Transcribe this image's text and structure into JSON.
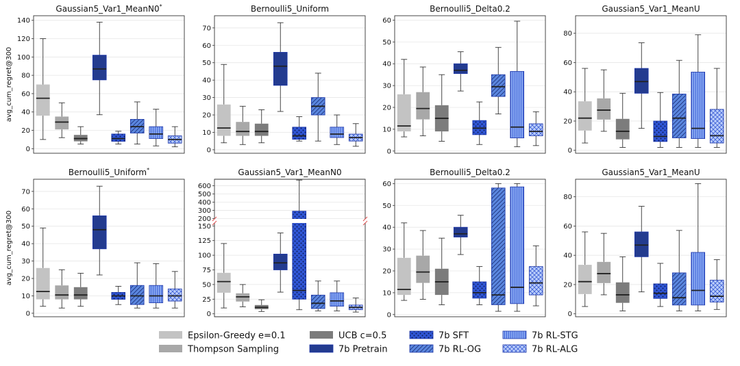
{
  "legend": {
    "items": [
      {
        "label": "Epsilon-Greedy e=0.1",
        "color": "#c3c3c3",
        "pattern": "none"
      },
      {
        "label": "Thompson Sampling",
        "color": "#a8a8a8",
        "pattern": "none"
      },
      {
        "label": "UCB c=0.5",
        "color": "#7c7c7c",
        "pattern": "none"
      },
      {
        "label": "7b Pretrain",
        "color": "#233b8f",
        "pattern": "none"
      },
      {
        "label": "7b SFT",
        "color": "#2f55d4",
        "pattern": "dots"
      },
      {
        "label": "7b RL-OG",
        "color": "#5a86de",
        "pattern": "diag"
      },
      {
        "label": "7b RL-STG",
        "color": "#8aaaf2",
        "pattern": "vert"
      },
      {
        "label": "7b RL-ALG",
        "color": "#b8ccfa",
        "pattern": "cross"
      }
    ]
  },
  "chart_data": [
    {
      "type": "box",
      "title": "Gaussian5_Var1_MeanN0",
      "title_sup": "*",
      "ylabel": "avg_cum_regret@300",
      "ylim": [
        -5,
        145
      ],
      "yticks": [
        0,
        20,
        40,
        60,
        80,
        100,
        120,
        140
      ],
      "boxes": [
        [
          10,
          36,
          55,
          70,
          120
        ],
        [
          12,
          21,
          29,
          35,
          50
        ],
        [
          5,
          8,
          11,
          15,
          24
        ],
        [
          37,
          75,
          87,
          102,
          138
        ],
        [
          5,
          8,
          11,
          16,
          19
        ],
        [
          5,
          17,
          24,
          32,
          51
        ],
        [
          3,
          11,
          16,
          24,
          43
        ],
        [
          2,
          6,
          10,
          14,
          24
        ]
      ]
    },
    {
      "type": "box",
      "title": "Bernoulli5_Uniform",
      "title_sup": "",
      "ylabel": "",
      "ylim": [
        -2,
        77
      ],
      "yticks": [
        0,
        10,
        20,
        30,
        40,
        50,
        60,
        70
      ],
      "boxes": [
        [
          4,
          8,
          12.5,
          26,
          49
        ],
        [
          3,
          8,
          10.5,
          16,
          25
        ],
        [
          4,
          8,
          10.5,
          15,
          23
        ],
        [
          22,
          37,
          48,
          56,
          73
        ],
        [
          5,
          6,
          8,
          13,
          19
        ],
        [
          5,
          20,
          25,
          30,
          44
        ],
        [
          3,
          7,
          9,
          13,
          20
        ],
        [
          2,
          5,
          7,
          9,
          15
        ]
      ]
    },
    {
      "type": "box",
      "title": "Bernoulli5_Delta0.2",
      "title_sup": "",
      "ylabel": "",
      "ylim": [
        -1,
        62
      ],
      "yticks": [
        0,
        10,
        20,
        30,
        40,
        50,
        60
      ],
      "boxes": [
        [
          6.5,
          9,
          11.5,
          26,
          42
        ],
        [
          7,
          14.5,
          19.5,
          27,
          38.5
        ],
        [
          4.5,
          9,
          15,
          21,
          35
        ],
        [
          27.5,
          35.5,
          37,
          40,
          45.5
        ],
        [
          3,
          7.5,
          10.5,
          14,
          22.5
        ],
        [
          17,
          25,
          29.5,
          35,
          47.5
        ],
        [
          2,
          6,
          11,
          36.5,
          59.5
        ],
        [
          2.5,
          7,
          9,
          12.5,
          18
        ]
      ]
    },
    {
      "type": "box",
      "title": "Gaussian5_Var1_MeanU",
      "title_sup": "",
      "ylabel": "",
      "ylim": [
        -2,
        92
      ],
      "yticks": [
        0,
        20,
        40,
        60,
        80
      ],
      "boxes": [
        [
          5,
          13.5,
          22,
          33.5,
          56
        ],
        [
          13,
          21,
          27.5,
          35.5,
          55
        ],
        [
          2,
          7.5,
          13,
          21.5,
          39
        ],
        [
          15,
          39,
          47,
          56,
          73.5
        ],
        [
          2,
          6,
          9.5,
          20,
          39.5
        ],
        [
          2,
          8.5,
          22,
          38.5,
          61.5
        ],
        [
          2,
          8,
          15,
          53.5,
          79
        ],
        [
          2,
          5,
          10,
          28,
          56
        ]
      ]
    },
    {
      "type": "box",
      "title": "Bernoulli5_Uniform",
      "title_sup": "*",
      "ylabel": "avg_cum_regret@300",
      "ylim": [
        -2,
        77
      ],
      "yticks": [
        0,
        10,
        20,
        30,
        40,
        50,
        60,
        70
      ],
      "boxes": [
        [
          4,
          8,
          12.5,
          26,
          49
        ],
        [
          3,
          8,
          10.5,
          16,
          25
        ],
        [
          4,
          8,
          10.5,
          15,
          23
        ],
        [
          22,
          37,
          48,
          56,
          73
        ],
        [
          5,
          8,
          10,
          12,
          15.5
        ],
        [
          3,
          5,
          10,
          16,
          29
        ],
        [
          3,
          6,
          10,
          16,
          28.5
        ],
        [
          3,
          7,
          10,
          14,
          24
        ]
      ]
    },
    {
      "type": "box",
      "title": "Gaussian5_Var1_MeanN0",
      "title_sup": "",
      "ylabel": "",
      "broken_axis": true,
      "ylim_low": [
        -5,
        155
      ],
      "ylim_high": [
        195,
        680
      ],
      "yticks_low": [
        0,
        25,
        50,
        75,
        100,
        125,
        150
      ],
      "yticks_high": [
        200,
        300,
        400,
        500,
        600
      ],
      "boxes": [
        [
          10,
          36,
          55,
          70,
          120
        ],
        [
          12,
          21,
          29,
          35,
          50
        ],
        [
          4,
          8,
          11,
          15,
          24
        ],
        [
          37,
          75,
          87,
          102,
          138
        ],
        [
          7,
          25,
          40,
          290,
          670
        ],
        [
          5,
          9,
          18,
          32,
          56
        ],
        [
          5,
          13,
          22,
          36,
          56
        ],
        [
          3,
          7,
          11,
          15,
          27
        ]
      ]
    },
    {
      "type": "box",
      "title": "Bernoulli5_Delta0.2",
      "title_sup": "",
      "ylabel": "",
      "ylim": [
        -1,
        62
      ],
      "yticks": [
        0,
        10,
        20,
        30,
        40,
        50,
        60
      ],
      "boxes": [
        [
          6.5,
          9,
          11.5,
          26,
          42
        ],
        [
          7,
          14.5,
          19.5,
          27,
          38.5
        ],
        [
          4.5,
          9,
          15,
          21,
          35
        ],
        [
          27.5,
          35.5,
          37,
          40,
          45.5
        ],
        [
          4.5,
          7.5,
          10,
          15,
          22
        ],
        [
          1.5,
          4.5,
          9,
          58,
          60
        ],
        [
          1.5,
          5,
          12.5,
          58.5,
          60
        ],
        [
          4,
          9,
          14.5,
          22,
          31.5
        ]
      ]
    },
    {
      "type": "box",
      "title": "Gaussian5_Var1_MeanU",
      "title_sup": "",
      "ylabel": "",
      "ylim": [
        -2,
        92
      ],
      "yticks": [
        0,
        20,
        40,
        60,
        80
      ],
      "boxes": [
        [
          5,
          13.5,
          22,
          33.5,
          56
        ],
        [
          13,
          21,
          27.5,
          35.5,
          55
        ],
        [
          2,
          7.5,
          13,
          21.5,
          39
        ],
        [
          15,
          39,
          47,
          56,
          73.5
        ],
        [
          5,
          10.5,
          14,
          20.5,
          34.5
        ],
        [
          2,
          6,
          11,
          28,
          57
        ],
        [
          2,
          6,
          16,
          42,
          89
        ],
        [
          3,
          8,
          12,
          23,
          37
        ]
      ]
    }
  ]
}
